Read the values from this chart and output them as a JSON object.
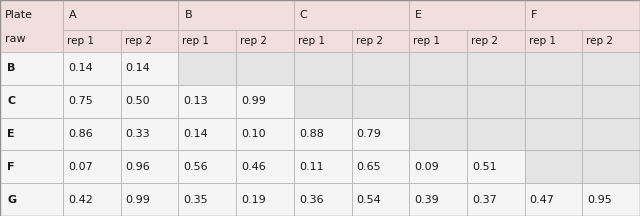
{
  "col_groups": [
    "A",
    "B",
    "C",
    "E",
    "F"
  ],
  "rows": [
    [
      "B",
      "0.14",
      "0.14",
      "",
      "",
      "",
      "",
      "",
      "",
      "",
      ""
    ],
    [
      "C",
      "0.75",
      "0.50",
      "0.13",
      "0.99",
      "",
      "",
      "",
      "",
      "",
      ""
    ],
    [
      "E",
      "0.86",
      "0.33",
      "0.14",
      "0.10",
      "0.88",
      "0.79",
      "",
      "",
      "",
      ""
    ],
    [
      "F",
      "0.07",
      "0.96",
      "0.56",
      "0.46",
      "0.11",
      "0.65",
      "0.09",
      "0.51",
      "",
      ""
    ],
    [
      "G",
      "0.42",
      "0.99",
      "0.35",
      "0.19",
      "0.36",
      "0.54",
      "0.39",
      "0.37",
      "0.47",
      "0.95"
    ]
  ],
  "bg_header": "#f2dede",
  "bg_subheader": "#f2dede",
  "bg_data_white": "#f5f5f5",
  "bg_data_empty": "#e4e4e4",
  "bg_row_label": "#f5f5f5",
  "text_color": "#1a1a1a",
  "border_color": "#b0b0b0",
  "font_size": 8.0
}
